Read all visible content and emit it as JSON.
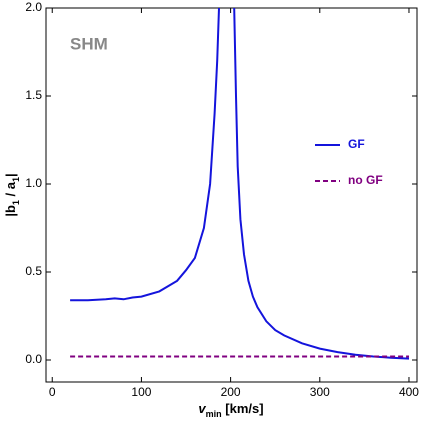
{
  "chart_data": {
    "type": "line",
    "annotation": "SHM",
    "xlabel_parts": [
      "v",
      "min",
      " [km/s]"
    ],
    "ylabel_parts": [
      "|b",
      "1",
      " / a",
      "1",
      "|"
    ],
    "xlim": [
      -7,
      409
    ],
    "ylim": [
      -0.125,
      2.0
    ],
    "xticks": [
      0,
      100,
      200,
      300,
      400
    ],
    "yticks": [
      {
        "value": 0,
        "label": "0.0"
      },
      0.5,
      {
        "value": 1,
        "label": "1.0"
      },
      1.5,
      {
        "value": 2,
        "label": "2.0"
      }
    ],
    "legend": "right",
    "series": [
      {
        "name": "GF",
        "color": "#1414dc",
        "dashed": false,
        "x": [
          20,
          40,
          60,
          70,
          80,
          90,
          100,
          120,
          140,
          150,
          160,
          170,
          177,
          182,
          185,
          187,
          196,
          204,
          206,
          208,
          211,
          215,
          220,
          225,
          230,
          240,
          250,
          260,
          280,
          300,
          320,
          340,
          360,
          380,
          400
        ],
        "values": [
          0.34,
          0.34,
          0.345,
          0.35,
          0.345,
          0.355,
          0.36,
          0.39,
          0.45,
          0.51,
          0.58,
          0.75,
          1.0,
          1.4,
          1.7,
          2.0,
          null,
          2.0,
          1.5,
          1.1,
          0.8,
          0.6,
          0.45,
          0.36,
          0.3,
          0.22,
          0.17,
          0.14,
          0.095,
          0.065,
          0.045,
          0.03,
          0.02,
          0.013,
          0.008
        ]
      },
      {
        "name": "no GF",
        "color": "#800080",
        "dashed": true,
        "x": [
          20,
          400
        ],
        "values": [
          0.02,
          0.02
        ]
      }
    ]
  }
}
